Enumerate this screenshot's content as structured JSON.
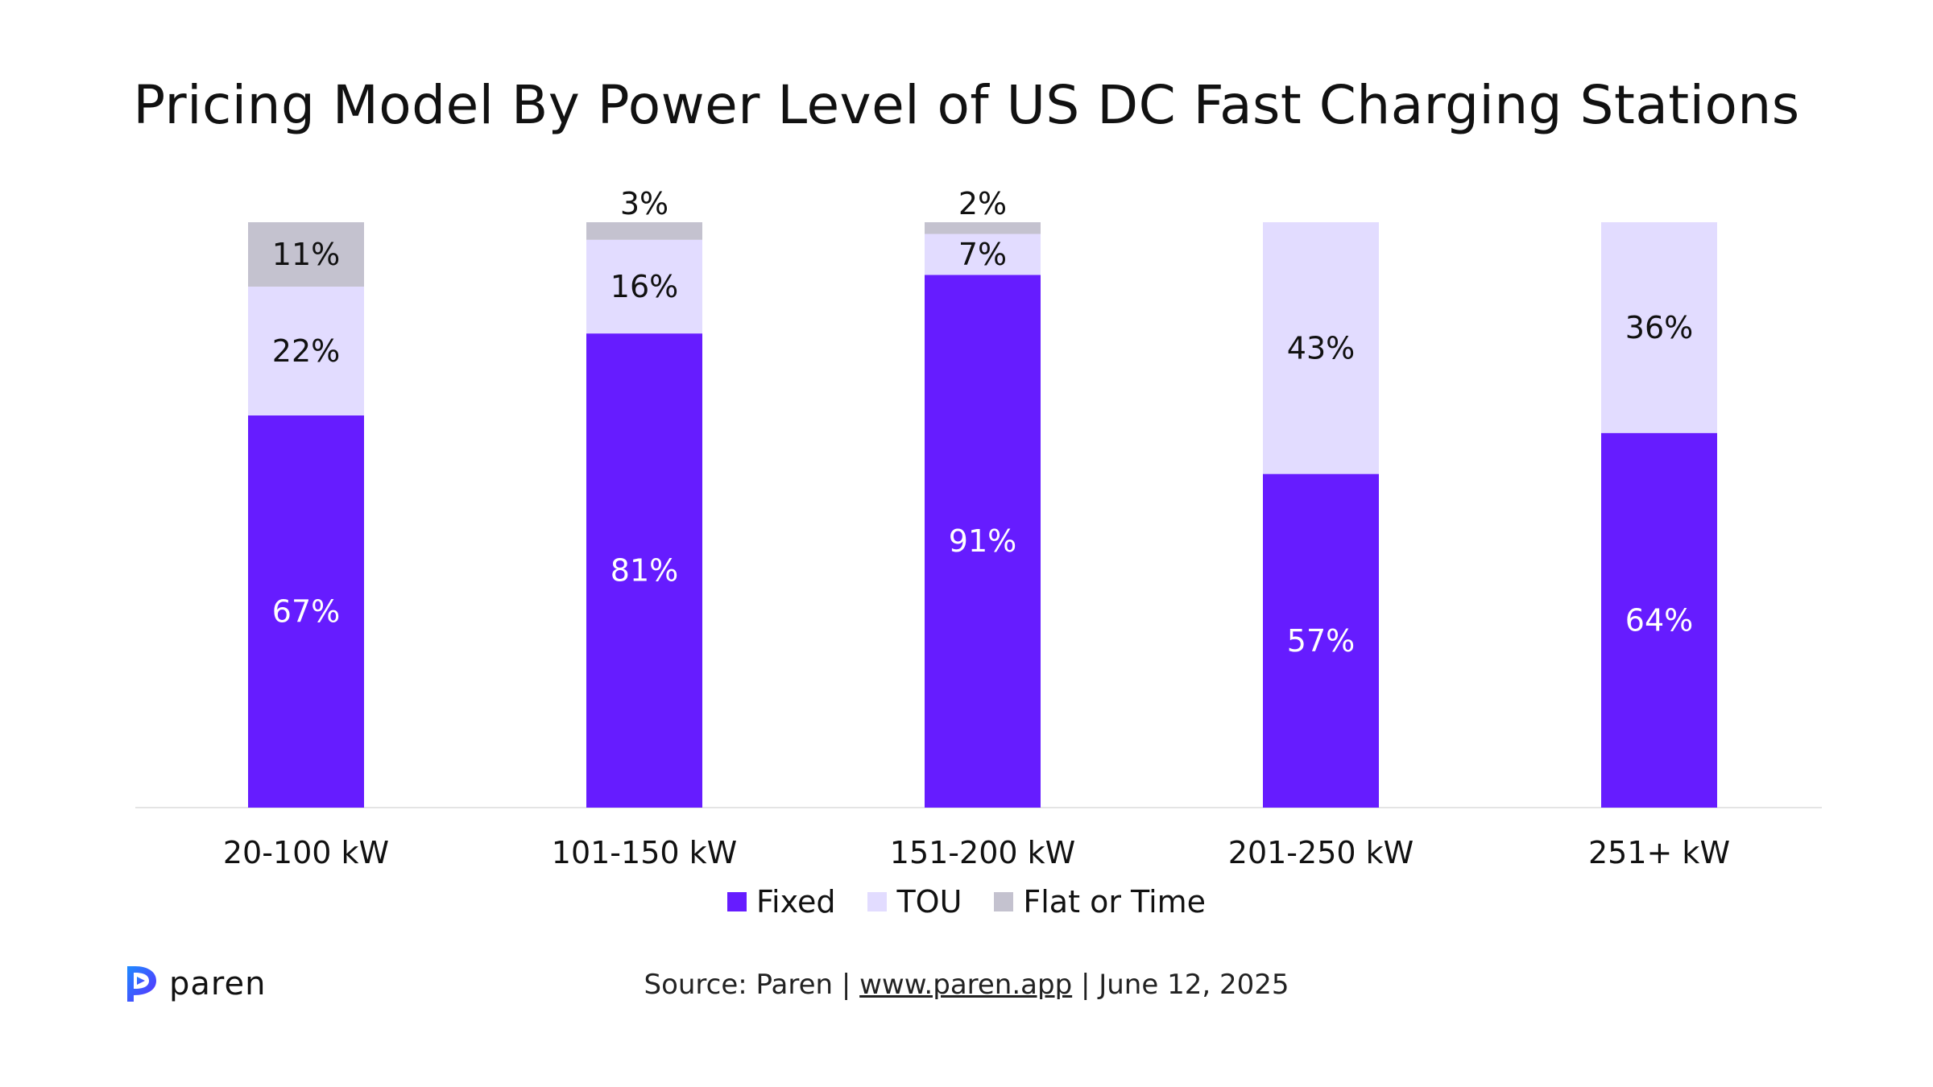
{
  "title": "Pricing Model By Power Level of US DC Fast Charging Stations",
  "colors": {
    "fixed": "#661CFF",
    "tou": "#E2DCFF",
    "flat": "#C4C2CF",
    "fixed_label": "#FFFFFF",
    "other_label": "#111111",
    "axis": "#E4E4E4"
  },
  "chart_data": {
    "type": "bar",
    "stacked": true,
    "categories": [
      "20-100 kW",
      "101-150 kW",
      "151-200 kW",
      "201-250 kW",
      "251+ kW"
    ],
    "series": [
      {
        "name": "Fixed",
        "values": [
          67,
          81,
          91,
          57,
          64
        ],
        "labels": [
          "67%",
          "81%",
          "91%",
          "57%",
          "64%"
        ]
      },
      {
        "name": "TOU",
        "values": [
          22,
          16,
          7,
          43,
          36
        ],
        "labels": [
          "22%",
          "16%",
          "7%",
          "43%",
          "36%"
        ]
      },
      {
        "name": "Flat or Time",
        "values": [
          11,
          3,
          2,
          0,
          0
        ],
        "labels": [
          "11%",
          "3%",
          "2%",
          "",
          ""
        ]
      }
    ],
    "ylim": [
      0,
      100
    ],
    "grid": false,
    "legend_position": "bottom-center"
  },
  "legend": {
    "fixed": "Fixed",
    "tou": "TOU",
    "flat": "Flat or Time"
  },
  "logo": {
    "text": "paren",
    "icon": "paren-logo-icon"
  },
  "source": {
    "prefix": "Source: Paren | ",
    "link": "www.paren.app",
    "suffix": " | June 12, 2025"
  }
}
